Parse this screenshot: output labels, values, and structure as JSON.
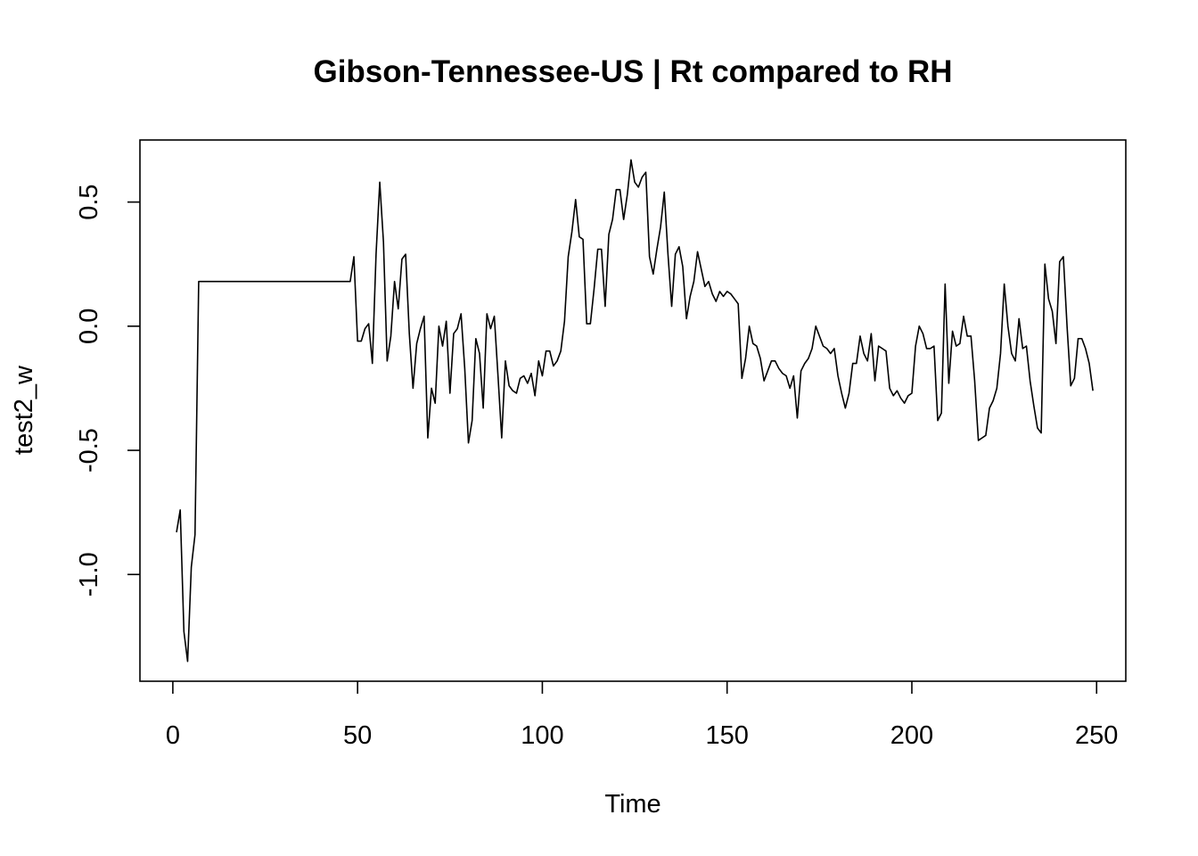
{
  "chart_data": {
    "type": "line",
    "title": "Gibson-Tennessee-US | Rt compared to RH",
    "xlabel": "Time",
    "ylabel": "test2_w",
    "xlim": [
      -8.9,
      257.9
    ],
    "ylim": [
      -1.43,
      0.75
    ],
    "xticks": [
      0,
      50,
      100,
      150,
      200,
      250
    ],
    "yticks": [
      -1.0,
      -0.5,
      0.0,
      0.5
    ],
    "ytick_labels": [
      "-1.0",
      "-0.5",
      "0.0",
      "0.5"
    ],
    "grid": false,
    "series": [
      {
        "color": "#000000",
        "x_start": 1,
        "values": [
          -0.83,
          -0.74,
          -1.23,
          -1.35,
          -0.97,
          -0.84,
          0.18,
          0.18,
          0.18,
          0.18,
          0.18,
          0.18,
          0.18,
          0.18,
          0.18,
          0.18,
          0.18,
          0.18,
          0.18,
          0.18,
          0.18,
          0.18,
          0.18,
          0.18,
          0.18,
          0.18,
          0.18,
          0.18,
          0.18,
          0.18,
          0.18,
          0.18,
          0.18,
          0.18,
          0.18,
          0.18,
          0.18,
          0.18,
          0.18,
          0.18,
          0.18,
          0.18,
          0.18,
          0.18,
          0.18,
          0.18,
          0.18,
          0.18,
          0.28,
          -0.06,
          -0.06,
          -0.01,
          0.01,
          -0.15,
          0.29,
          0.58,
          0.34,
          -0.14,
          -0.04,
          0.18,
          0.07,
          0.27,
          0.29,
          -0.03,
          -0.25,
          -0.07,
          -0.01,
          0.04,
          -0.45,
          -0.25,
          -0.31,
          0.0,
          -0.08,
          0.02,
          -0.27,
          -0.03,
          -0.01,
          0.05,
          -0.17,
          -0.47,
          -0.38,
          -0.05,
          -0.11,
          -0.33,
          0.05,
          -0.01,
          0.04,
          -0.2,
          -0.45,
          -0.14,
          -0.24,
          -0.26,
          -0.27,
          -0.21,
          -0.2,
          -0.23,
          -0.19,
          -0.28,
          -0.14,
          -0.2,
          -0.1,
          -0.1,
          -0.16,
          -0.14,
          -0.1,
          0.02,
          0.28,
          0.38,
          0.51,
          0.36,
          0.35,
          0.01,
          0.01,
          0.15,
          0.31,
          0.31,
          0.08,
          0.37,
          0.43,
          0.55,
          0.55,
          0.43,
          0.53,
          0.67,
          0.58,
          0.56,
          0.6,
          0.62,
          0.28,
          0.21,
          0.31,
          0.4,
          0.54,
          0.29,
          0.08,
          0.29,
          0.32,
          0.24,
          0.03,
          0.12,
          0.18,
          0.3,
          0.23,
          0.16,
          0.18,
          0.13,
          0.1,
          0.14,
          0.12,
          0.14,
          0.13,
          0.11,
          0.09,
          -0.21,
          -0.13,
          0.0,
          -0.07,
          -0.08,
          -0.13,
          -0.22,
          -0.18,
          -0.14,
          -0.14,
          -0.17,
          -0.19,
          -0.2,
          -0.25,
          -0.2,
          -0.37,
          -0.18,
          -0.15,
          -0.13,
          -0.09,
          0.0,
          -0.04,
          -0.08,
          -0.09,
          -0.11,
          -0.09,
          -0.2,
          -0.27,
          -0.33,
          -0.27,
          -0.15,
          -0.15,
          -0.04,
          -0.11,
          -0.14,
          -0.03,
          -0.22,
          -0.08,
          -0.09,
          -0.1,
          -0.25,
          -0.28,
          -0.26,
          -0.29,
          -0.31,
          -0.28,
          -0.27,
          -0.08,
          0.0,
          -0.03,
          -0.09,
          -0.09,
          -0.08,
          -0.38,
          -0.35,
          0.17,
          -0.23,
          -0.02,
          -0.08,
          -0.07,
          0.04,
          -0.04,
          -0.04,
          -0.22,
          -0.46,
          -0.45,
          -0.44,
          -0.33,
          -0.3,
          -0.25,
          -0.11,
          0.17,
          0.0,
          -0.11,
          -0.14,
          0.03,
          -0.09,
          -0.08,
          -0.22,
          -0.32,
          -0.41,
          -0.43,
          0.25,
          0.11,
          0.06,
          -0.07,
          0.26,
          0.28,
          0.0,
          -0.24,
          -0.21,
          -0.05,
          -0.05,
          -0.09,
          -0.15,
          -0.26
        ]
      }
    ]
  }
}
